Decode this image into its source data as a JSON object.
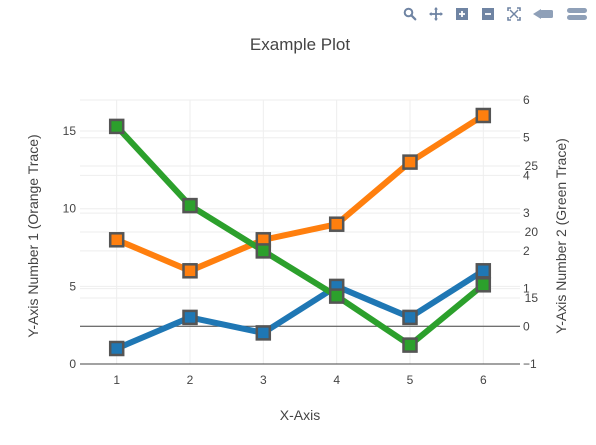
{
  "chart_data": {
    "type": "line",
    "title": "Example Plot",
    "xlabel": "X-Axis",
    "y1label": "Y-Axis Number 1 (Orange Trace)",
    "y2label": "Y-Axis Number 2 (Green Trace)",
    "x": [
      1,
      2,
      3,
      4,
      5,
      6
    ],
    "xlim": [
      0.5,
      6.5
    ],
    "x_ticks": [
      "1",
      "2",
      "3",
      "4",
      "5",
      "6"
    ],
    "y1lim": [
      0,
      17
    ],
    "y1_ticks": [
      "0",
      "5",
      "10",
      "15"
    ],
    "y2lim": [
      -1,
      6
    ],
    "y2_ticks": [
      "−1",
      "0",
      "1",
      "2",
      "3",
      "4",
      "5",
      "6"
    ],
    "y3lim": [
      10,
      30
    ],
    "y3_ticks": [
      "15",
      "20",
      "25"
    ],
    "grid": true,
    "series": [
      {
        "color": "#1f77b4",
        "axis": "y1",
        "values": [
          1,
          3,
          2,
          5,
          3,
          6
        ]
      },
      {
        "color": "#ff7f0e",
        "axis": "y1",
        "values": [
          8,
          6,
          8,
          9,
          13,
          16
        ]
      },
      {
        "color": "#2ca02c",
        "axis": "y2",
        "values": [
          5.3,
          3.2,
          2.0,
          0.8,
          -0.5,
          1.1
        ]
      }
    ]
  },
  "modebar": {
    "icons": [
      "zoom-icon",
      "pan-icon",
      "zoom-in-icon",
      "zoom-out-icon",
      "autoscale-icon",
      "reset-axes-icon",
      "plotly-logo-icon"
    ]
  }
}
